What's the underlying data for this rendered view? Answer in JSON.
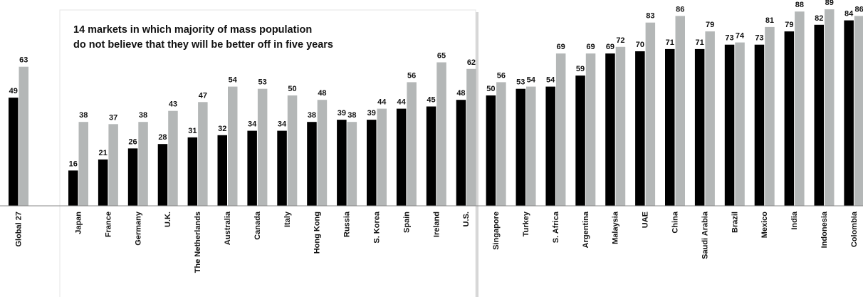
{
  "chart_data": {
    "type": "bar",
    "annotation": {
      "lines": [
        "14 markets in which majority of mass population",
        "do not believe that they will be better off in five years"
      ]
    },
    "categories": [
      "Global 27",
      "Japan",
      "France",
      "Germany",
      "U.K.",
      "The Netherlands",
      "Australia",
      "Canada",
      "Italy",
      "Hong Kong",
      "Russia",
      "S. Korea",
      "Spain",
      "Ireland",
      "U.S.",
      "Singapore",
      "Turkey",
      "S. Africa",
      "Argentina",
      "Malaysia",
      "UAE",
      "China",
      "Saudi Arabia",
      "Brazil",
      "Mexico",
      "India",
      "Indonesia",
      "Colombia"
    ],
    "series": [
      {
        "color": "#000000",
        "values": [
          49,
          16,
          21,
          26,
          28,
          31,
          32,
          34,
          34,
          38,
          39,
          39,
          44,
          45,
          48,
          50,
          53,
          54,
          59,
          69,
          70,
          71,
          71,
          73,
          73,
          79,
          82,
          84
        ]
      },
      {
        "color": "#b4b7b7",
        "values": [
          63,
          38,
          37,
          38,
          43,
          47,
          54,
          53,
          50,
          48,
          38,
          44,
          56,
          65,
          62,
          56,
          54,
          69,
          69,
          72,
          83,
          86,
          79,
          74,
          81,
          88,
          89,
          86
        ]
      }
    ],
    "highlighted_categories": [
      "Japan",
      "France",
      "Germany",
      "U.K.",
      "The Netherlands",
      "Australia",
      "Canada",
      "Italy",
      "Hong Kong",
      "Russia",
      "S. Korea",
      "Spain",
      "Ireland",
      "U.S."
    ],
    "ylim": [
      0,
      100
    ],
    "grid": false,
    "legend": "none"
  }
}
